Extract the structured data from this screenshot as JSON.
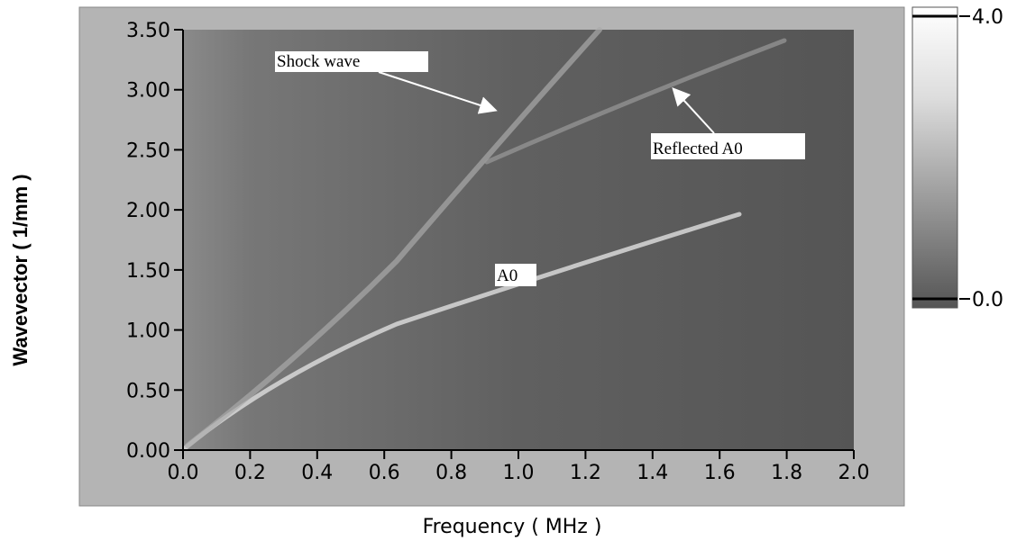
{
  "chart_data": {
    "type": "heatmap",
    "xlabel": "Frequency ( MHz )",
    "ylabel": "Wavevector ( 1/mm )",
    "xlim": [
      0,
      2
    ],
    "ylim": [
      0,
      3.5
    ],
    "xticks": [
      {
        "value": 0,
        "label": "0.0"
      },
      0.2,
      0.4,
      0.6,
      0.8,
      {
        "value": 1,
        "label": "1.0"
      },
      1.2,
      1.4,
      1.6,
      1.8,
      {
        "value": 2,
        "label": "2.0"
      }
    ],
    "yticks": [
      {
        "value": 0,
        "label": "0.00"
      },
      {
        "value": 0.5,
        "label": "0.50"
      },
      {
        "value": 1,
        "label": "1.00"
      },
      {
        "value": 1.5,
        "label": "1.50"
      },
      {
        "value": 2,
        "label": "2.00"
      },
      {
        "value": 2.5,
        "label": "2.50"
      },
      {
        "value": 3,
        "label": "3.00"
      },
      {
        "value": 3.5,
        "label": "3.50"
      }
    ],
    "colorbar": {
      "lim": [
        0,
        4
      ],
      "ticks": [
        {
          "value": 4,
          "label": "4.0"
        },
        {
          "value": 0,
          "label": "0.0"
        }
      ]
    },
    "annotations": [
      {
        "text": "Shock wave"
      },
      {
        "text": "Reflected A0"
      },
      {
        "text": "A0"
      }
    ]
  }
}
